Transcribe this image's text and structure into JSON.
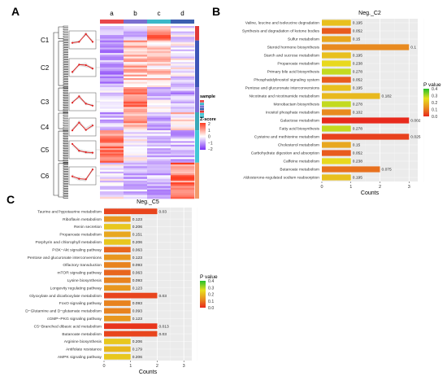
{
  "panel_labels": {
    "A": "A",
    "B": "B",
    "C": "C"
  },
  "legend_colors": {
    "low": "#e8e01e",
    "mid": "#e88a1f",
    "high": "#e8281c",
    "top": "#22c02b"
  },
  "panelA": {
    "columns": [
      "a",
      "b",
      "c",
      "d"
    ],
    "column_colors": [
      "#e8474b",
      "#7a6fd0",
      "#3cb8c8",
      "#3c5fb0"
    ],
    "clusters": [
      "C1",
      "C2",
      "C3",
      "C4",
      "C5",
      "C6"
    ],
    "cluster_colors": [
      "#e03a3a",
      "#3e55b8",
      "#7c6fd6",
      "#3aa8b8",
      "#41c7d6",
      "#f29a6a"
    ],
    "sample_legend_title": "sample",
    "zscore_title": "Z-score",
    "zscore_ticks": [
      "2",
      "1",
      "0",
      "−1",
      "−2"
    ],
    "heatmap_colors": {
      "neg": "#7b2ff7",
      "zero": "#ffffff",
      "pos": "#ff3b1f"
    }
  },
  "chart_data": [
    {
      "type": "bar",
      "orientation": "horizontal",
      "title": "Neg._C2",
      "xlabel": "Counts",
      "xlim": [
        0,
        3.3
      ],
      "x_ticks": [
        "0",
        "1",
        "2",
        "3"
      ],
      "legend_title": "P value",
      "legend_ticks": [
        "0.4",
        "0.3",
        "0.2",
        "0.1",
        "0.0"
      ],
      "categories": [
        "Valine, leucine and isoleucine degradation",
        "Synthesis and degradation of ketone bodies",
        "Sulfur metabolism",
        "Steroid hormone biosynthesis",
        "Starch and sucrose metabolism",
        "Propanoate metabolism",
        "Primary bile acid biosynthesis",
        "Phosphatidylinositol signaling system",
        "Pentose and glucuronate interconversions",
        "Nicotinate and nicotinamide metabolism",
        "Monobactam biosynthesis",
        "Inositol phosphate metabolism",
        "Galactose metabolism",
        "Fatty acid biosynthesis",
        "Cysteine and methionine metabolism",
        "Cholesterol metabolism",
        "Carbohydrate digestion and absorption",
        "Caffeine metabolism",
        "Butanoate metabolism",
        "Aldosterone-regulated sodium reabsorption"
      ],
      "values": [
        1,
        1,
        1,
        3,
        1,
        1,
        1,
        1,
        1,
        2,
        1,
        1,
        3,
        1,
        3,
        1,
        1,
        1,
        2,
        1
      ],
      "pvalues": [
        "0.195",
        "0.052",
        "0.15",
        "0.1",
        "0.195",
        "0.238",
        "0.278",
        "0.052",
        "0.195",
        "0.182",
        "0.278",
        "0.102",
        "0.002",
        "0.278",
        "0.025",
        "0.15",
        "0.052",
        "0.238",
        "0.075",
        "0.195"
      ]
    },
    {
      "type": "bar",
      "orientation": "horizontal",
      "title": "Neg._C5",
      "xlabel": "Counts",
      "xlim": [
        0,
        3.3
      ],
      "x_ticks": [
        "0",
        "1",
        "2",
        "3"
      ],
      "legend_title": "P value",
      "legend_ticks": [
        "0.4",
        "0.3",
        "0.2",
        "0.1",
        "0.0"
      ],
      "categories": [
        "Taurine and hypotaurine metabolism",
        "Riboflavin metabolism",
        "Renin secretion",
        "Propanoate metabolism",
        "Porphyrin and chlorophyll metabolism",
        "PI3K−Akt signaling pathway",
        "Pentose and glucuronate interconversions",
        "Olfactory transduction",
        "mTOR signaling pathway",
        "Lysine biosynthesis",
        "Longevity regulating pathway",
        "Glyoxylate and dicarboxylate metabolism",
        "FoxO signaling pathway",
        "D−Glutamine and D−glutamate metabolism",
        "cGMP−PKG signaling pathway",
        "C5−Branched dibasic acid metabolism",
        "Butanoate metabolism",
        "Arginine biosynthesis",
        "Antifolate resistance",
        "AMPK signaling pathway"
      ],
      "values": [
        2,
        1,
        1,
        1,
        1,
        1,
        1,
        1,
        1,
        1,
        1,
        2,
        1,
        1,
        1,
        2,
        2,
        1,
        1,
        1
      ],
      "pvalues": [
        "0.03",
        "0.123",
        "0.206",
        "0.151",
        "0.206",
        "0.063",
        "0.123",
        "0.093",
        "0.063",
        "0.093",
        "0.123",
        "0.03",
        "0.093",
        "0.093",
        "0.123",
        "0.013",
        "0.03",
        "0.206",
        "0.179",
        "0.206"
      ]
    }
  ]
}
